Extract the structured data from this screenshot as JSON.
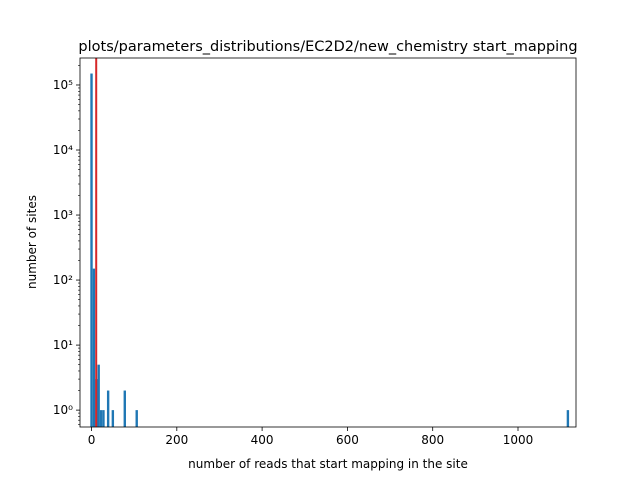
{
  "chart_data": {
    "type": "bar",
    "title": "plots/parameters_distributions/EC2D2/new_chemistry start_mapping",
    "xlabel": "number of reads that start mapping in the site",
    "ylabel": "number of sites",
    "xlim": [
      -27,
      1136
    ],
    "ylim": [
      0.55,
      260000
    ],
    "yscale": "log",
    "bar_width": 5.6,
    "bar_color": "#1f77b4",
    "x_ticks": [
      0,
      200,
      400,
      600,
      800,
      1000
    ],
    "x_tick_labels": [
      "0",
      "200",
      "400",
      "600",
      "800",
      "1000"
    ],
    "y_ticks": [
      1,
      10,
      100,
      1000,
      10000,
      100000
    ],
    "y_tick_labels": [
      "10⁰",
      "10¹",
      "10²",
      "10³",
      "10⁴",
      "10⁵"
    ],
    "x": [
      0,
      5.6,
      11.2,
      16.8,
      22.4,
      28,
      39,
      50,
      78,
      106,
      1117
    ],
    "values": [
      150000,
      150,
      3,
      5,
      1,
      1,
      2,
      1,
      2,
      1,
      1
    ],
    "vline": {
      "x": 11,
      "color": "#d62728"
    },
    "grid": false,
    "legend": "none"
  }
}
